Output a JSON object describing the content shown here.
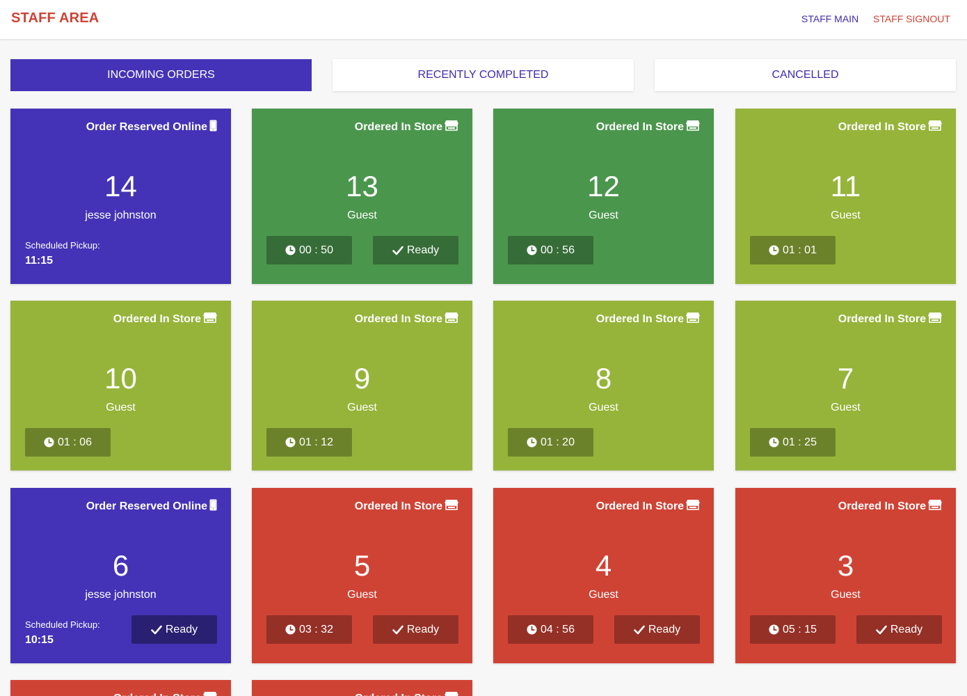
{
  "header": {
    "brand": "STAFF AREA",
    "nav_main": "STAFF MAIN",
    "nav_signout": "STAFF SIGNOUT"
  },
  "tabs": [
    {
      "label": "INCOMING ORDERS",
      "active": true
    },
    {
      "label": "RECENTLY COMPLETED",
      "active": false
    },
    {
      "label": "CANCELLED",
      "active": false
    }
  ],
  "colors": {
    "online": "#4433b6",
    "fresh": "#4b964d",
    "waiting": "#96b43a",
    "late": "#cf4335",
    "accent_text": "#3f2cae",
    "brand": "#cf4335"
  },
  "labels": {
    "ready": "Ready",
    "scheduled_pickup": "Scheduled Pickup:"
  },
  "orders": [
    {
      "number": "14",
      "name": "jesse johnston",
      "source": "Order Reserved Online",
      "source_icon": "mobile-icon",
      "status": "online",
      "pickup": "11:15",
      "ready_button": false
    },
    {
      "number": "13",
      "name": "Guest",
      "source": "Ordered In Store",
      "source_icon": "store-icon",
      "status": "fresh",
      "timer": "00 : 50",
      "ready_button": true
    },
    {
      "number": "12",
      "name": "Guest",
      "source": "Ordered In Store",
      "source_icon": "store-icon",
      "status": "fresh",
      "timer": "00 : 56",
      "ready_button": false
    },
    {
      "number": "11",
      "name": "Guest",
      "source": "Ordered In Store",
      "source_icon": "store-icon",
      "status": "waiting",
      "timer": "01 : 01",
      "ready_button": false
    },
    {
      "number": "10",
      "name": "Guest",
      "source": "Ordered In Store",
      "source_icon": "store-icon",
      "status": "waiting",
      "timer": "01 : 06",
      "ready_button": false
    },
    {
      "number": "9",
      "name": "Guest",
      "source": "Ordered In Store",
      "source_icon": "store-icon",
      "status": "waiting",
      "timer": "01 : 12",
      "ready_button": false
    },
    {
      "number": "8",
      "name": "Guest",
      "source": "Ordered In Store",
      "source_icon": "store-icon",
      "status": "waiting",
      "timer": "01 : 20",
      "ready_button": false
    },
    {
      "number": "7",
      "name": "Guest",
      "source": "Ordered In Store",
      "source_icon": "store-icon",
      "status": "waiting",
      "timer": "01 : 25",
      "ready_button": false
    },
    {
      "number": "6",
      "name": "jesse johnston",
      "source": "Order Reserved Online",
      "source_icon": "mobile-icon",
      "status": "online",
      "pickup": "10:15",
      "ready_button": true
    },
    {
      "number": "5",
      "name": "Guest",
      "source": "Ordered In Store",
      "source_icon": "store-icon",
      "status": "late",
      "timer": "03 : 32",
      "ready_button": true
    },
    {
      "number": "4",
      "name": "Guest",
      "source": "Ordered In Store",
      "source_icon": "store-icon",
      "status": "late",
      "timer": "04 : 56",
      "ready_button": true
    },
    {
      "number": "3",
      "name": "Guest",
      "source": "Ordered In Store",
      "source_icon": "store-icon",
      "status": "late",
      "timer": "05 : 15",
      "ready_button": true
    },
    {
      "number": "",
      "name": "",
      "source": "Ordered In Store",
      "source_icon": "store-icon",
      "status": "late",
      "ready_button": false
    },
    {
      "number": "",
      "name": "",
      "source": "Ordered In Store",
      "source_icon": "store-icon",
      "status": "late",
      "ready_button": false
    }
  ]
}
